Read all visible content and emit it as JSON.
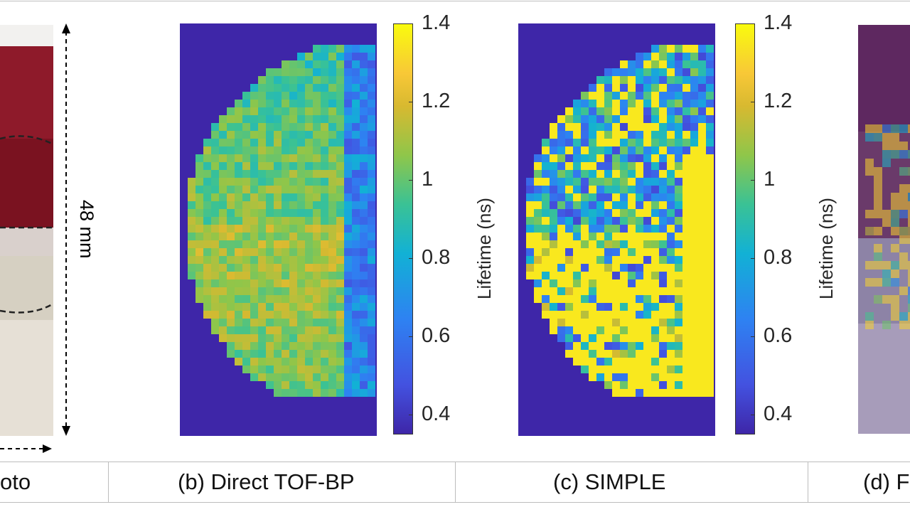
{
  "panels": {
    "a": {
      "caption": "oto"
    },
    "b": {
      "caption": "(b) Direct TOF-BP"
    },
    "c": {
      "caption": "(c) SIMPLE"
    },
    "d": {
      "caption": "(d) F"
    }
  },
  "scale_label": "48 mm",
  "colorbar": {
    "label": "Lifetime (ns)",
    "ticks": [
      {
        "value": 0.4,
        "text": "0.4"
      },
      {
        "value": 0.6,
        "text": "0.6"
      },
      {
        "value": 0.8,
        "text": "0.8"
      },
      {
        "value": 1.0,
        "text": "1"
      },
      {
        "value": 1.2,
        "text": "1.2"
      },
      {
        "value": 1.4,
        "text": "1.4"
      }
    ],
    "range": [
      0.35,
      1.4
    ],
    "colormap": [
      "#3e26a8",
      "#4352e0",
      "#2e82f2",
      "#12b1d5",
      "#3ac295",
      "#8fc64a",
      "#d8b930",
      "#f8c837",
      "#f9fb0e"
    ]
  },
  "chart_data": [
    {
      "type": "heatmap",
      "title": "(b) Direct TOF-BP",
      "colorbar_label": "Lifetime (ns)",
      "clim": [
        0.35,
        1.4
      ],
      "background_value": 0.35
    },
    {
      "type": "heatmap",
      "title": "(c) SIMPLE",
      "colorbar_label": "Lifetime (ns)",
      "clim": [
        0.35,
        1.4
      ],
      "background_value": 0.35
    }
  ]
}
